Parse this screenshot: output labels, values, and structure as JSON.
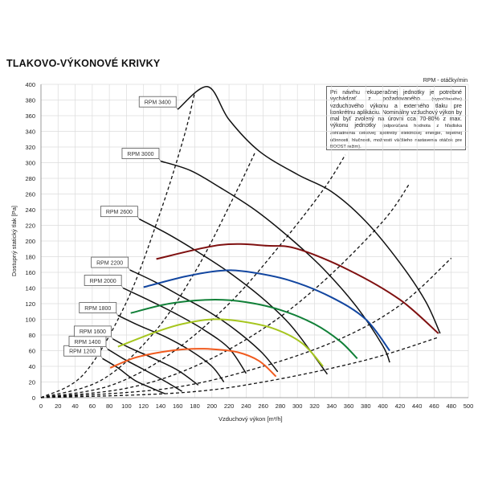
{
  "page": {
    "title": "TLAKOVO-VÝKONOVÉ KRIVKY",
    "rpm_note": "RPM - otáčky/min",
    "info_main_1": "Pri návrhu rekuperačnej jednotky je potrebné vychádzať z požadovaného",
    "info_small_1": "(vypočítaného)",
    "info_main_2": "vzduchového výkonu a externého tlaku pre konkrétnu aplikáciu. Nominálny vzduchový výkon by mal byť zvolený na úrovni cca 70-80% z max. výkonu jednotky",
    "info_small_2": "(odporúčaná hodnota z hľadiska zohľadnenia celkovej spotreby elektrickej energie, tepelnej účinnosti, hlučnosti, možnosti väčšieho nastavenia otáčok pre BOOST režim)."
  },
  "chart_data": {
    "type": "line",
    "title": "TLAKOVO-VÝKONOVÉ KRIVKY",
    "xlabel": "Vzduchový výkon [m³/h]",
    "ylabel": "Dostupný statický tlak [Pa]",
    "xlim": [
      0,
      500
    ],
    "ylim": [
      0,
      400
    ],
    "xticks": [
      0,
      20,
      40,
      60,
      80,
      100,
      120,
      140,
      160,
      180,
      200,
      220,
      240,
      260,
      280,
      300,
      320,
      340,
      360,
      380,
      400,
      420,
      440,
      460,
      480,
      500
    ],
    "yticks": [
      0,
      20,
      40,
      60,
      80,
      100,
      120,
      140,
      160,
      180,
      200,
      220,
      240,
      260,
      280,
      300,
      320,
      340,
      360,
      380,
      400
    ],
    "grid": true,
    "legend": "none",
    "rpm_curves": [
      {
        "name": "RPM 1200",
        "points": [
          [
            0,
            0
          ],
          [
            72,
            50
          ],
          [
            90,
            38
          ],
          [
            110,
            22
          ],
          [
            130,
            12
          ],
          [
            145,
            5
          ]
        ]
      },
      {
        "name": "RPM 1400",
        "points": [
          [
            0,
            0
          ],
          [
            78,
            62
          ],
          [
            96,
            50
          ],
          [
            120,
            36
          ],
          [
            145,
            21
          ],
          [
            165,
            8
          ]
        ]
      },
      {
        "name": "RPM 1600",
        "points": [
          [
            0,
            0
          ],
          [
            84,
            75
          ],
          [
            103,
            64
          ],
          [
            130,
            51
          ],
          [
            160,
            35
          ],
          [
            184,
            16
          ]
        ]
      },
      {
        "name": "RPM 1800",
        "points": [
          [
            0,
            0
          ],
          [
            90,
            105
          ],
          [
            115,
            92
          ],
          [
            145,
            78
          ],
          [
            175,
            60
          ],
          [
            200,
            40
          ],
          [
            214,
            20
          ]
        ]
      },
      {
        "name": "RPM 2000",
        "points": [
          [
            0,
            0
          ],
          [
            96,
            140
          ],
          [
            125,
            125
          ],
          [
            158,
            107
          ],
          [
            190,
            87
          ],
          [
            220,
            63
          ],
          [
            240,
            31
          ]
        ]
      },
      {
        "name": "RPM 2200",
        "points": [
          [
            0,
            0
          ],
          [
            104,
            163
          ],
          [
            133,
            148
          ],
          [
            163,
            130
          ],
          [
            196,
            110
          ],
          [
            228,
            86
          ],
          [
            258,
            58
          ],
          [
            277,
            33
          ]
        ]
      },
      {
        "name": "RPM 2600",
        "points": [
          [
            0,
            0
          ],
          [
            115,
            228
          ],
          [
            150,
            208
          ],
          [
            185,
            185
          ],
          [
            220,
            160
          ],
          [
            258,
            128
          ],
          [
            290,
            95
          ],
          [
            315,
            60
          ],
          [
            335,
            30
          ]
        ]
      },
      {
        "name": "RPM 3000",
        "points": [
          [
            0,
            0
          ],
          [
            140,
            302
          ],
          [
            175,
            290
          ],
          [
            210,
            268
          ],
          [
            250,
            240
          ],
          [
            290,
            205
          ],
          [
            330,
            165
          ],
          [
            370,
            115
          ],
          [
            400,
            66
          ],
          [
            408,
            45
          ]
        ]
      },
      {
        "name": "RPM 3400",
        "points": [
          [
            0,
            0
          ],
          [
            160,
            368
          ],
          [
            195,
            397
          ],
          [
            220,
            355
          ],
          [
            255,
            315
          ],
          [
            300,
            285
          ],
          [
            340,
            263
          ],
          [
            380,
            225
          ],
          [
            420,
            172
          ],
          [
            450,
            123
          ],
          [
            467,
            82
          ]
        ]
      }
    ],
    "system_curves": [
      {
        "points": [
          [
            0,
            0
          ],
          [
            50,
            30
          ],
          [
            100,
            122
          ],
          [
            140,
            238
          ],
          [
            167,
            332
          ],
          [
            180,
            390
          ]
        ]
      },
      {
        "points": [
          [
            0,
            0
          ],
          [
            70,
            22
          ],
          [
            130,
            80
          ],
          [
            180,
            160
          ],
          [
            225,
            255
          ],
          [
            250,
            312
          ]
        ]
      },
      {
        "points": [
          [
            0,
            0
          ],
          [
            80,
            15
          ],
          [
            150,
            55
          ],
          [
            220,
            120
          ],
          [
            280,
            195
          ],
          [
            330,
            265
          ],
          [
            356,
            310
          ]
        ]
      },
      {
        "points": [
          [
            0,
            0
          ],
          [
            100,
            12
          ],
          [
            180,
            40
          ],
          [
            260,
            88
          ],
          [
            330,
            148
          ],
          [
            400,
            225
          ],
          [
            431,
            273
          ]
        ]
      },
      {
        "points": [
          [
            0,
            0
          ],
          [
            150,
            12
          ],
          [
            260,
            40
          ],
          [
            350,
            75
          ],
          [
            420,
            118
          ],
          [
            480,
            178
          ]
        ]
      },
      {
        "points": [
          [
            0,
            0
          ],
          [
            160,
            6
          ],
          [
            260,
            20
          ],
          [
            380,
            48
          ],
          [
            465,
            77
          ]
        ]
      }
    ],
    "working_ranges": [
      {
        "name": "2200",
        "color": "#7f1010",
        "points": [
          [
            135,
            177
          ],
          [
            210,
            195
          ],
          [
            265,
            194
          ],
          [
            300,
            190
          ],
          [
            360,
            163
          ],
          [
            420,
            125
          ],
          [
            465,
            82
          ]
        ]
      },
      {
        "name": "2000",
        "color": "#1246a0",
        "points": [
          [
            120,
            141
          ],
          [
            170,
            155
          ],
          [
            210,
            162
          ],
          [
            240,
            161
          ],
          [
            290,
            150
          ],
          [
            340,
            128
          ],
          [
            380,
            100
          ],
          [
            408,
            60
          ]
        ]
      },
      {
        "name": "1800",
        "color": "#118038",
        "points": [
          [
            105,
            108
          ],
          [
            150,
            120
          ],
          [
            200,
            125
          ],
          [
            240,
            122
          ],
          [
            280,
            112
          ],
          [
            320,
            94
          ],
          [
            350,
            72
          ],
          [
            370,
            50
          ]
        ]
      },
      {
        "name": "1600",
        "color": "#a6c61f",
        "points": [
          [
            90,
            65
          ],
          [
            135,
            84
          ],
          [
            165,
            94
          ],
          [
            200,
            100
          ],
          [
            230,
            98
          ],
          [
            270,
            89
          ],
          [
            305,
            70
          ],
          [
            330,
            40
          ]
        ]
      },
      {
        "name": "1400",
        "color": "#f05a1e",
        "points": [
          [
            81,
            38
          ],
          [
            110,
            51
          ],
          [
            140,
            58
          ],
          [
            170,
            62
          ],
          [
            200,
            62
          ],
          [
            230,
            58
          ],
          [
            255,
            47
          ],
          [
            275,
            27
          ]
        ]
      }
    ]
  }
}
